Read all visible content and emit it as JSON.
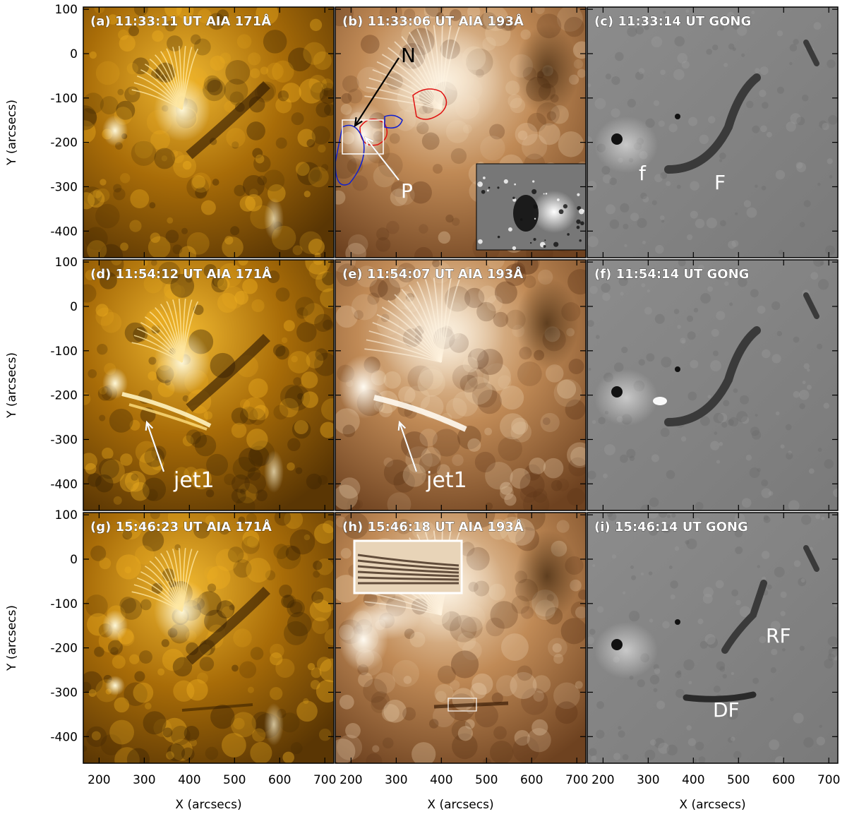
{
  "figure": {
    "x_axis_label": "X (arcsecs)",
    "y_axis_label": "Y (arcsecs)",
    "x_ticks": [
      "200",
      "300",
      "400",
      "500",
      "600",
      "700"
    ],
    "y_ticks": [
      "100",
      "0",
      "-100",
      "-200",
      "-300",
      "-400"
    ],
    "x_range": [
      165,
      720
    ],
    "y_range": [
      -460,
      105
    ]
  },
  "panels": [
    {
      "id": "a",
      "label": "(a) 11:33:11 UT AIA 171Å",
      "instrument": "AIA 171",
      "color": "#e0a21c"
    },
    {
      "id": "b",
      "label": "(b) 11:33:06 UT AIA 193Å",
      "instrument": "AIA 193",
      "color": "#b87a3c"
    },
    {
      "id": "c",
      "label": "(c) 11:33:14 UT GONG",
      "instrument": "GONG H-alpha",
      "color": "#8a8a8a"
    },
    {
      "id": "d",
      "label": "(d) 11:54:12 UT AIA 171Å",
      "instrument": "AIA 171",
      "color": "#e0a21c"
    },
    {
      "id": "e",
      "label": "(e) 11:54:07 UT AIA 193Å",
      "instrument": "AIA 193",
      "color": "#b87a3c"
    },
    {
      "id": "f",
      "label": "(f) 11:54:14 UT GONG",
      "instrument": "GONG H-alpha",
      "color": "#8a8a8a"
    },
    {
      "id": "g",
      "label": "(g) 15:46:23 UT AIA 171Å",
      "instrument": "AIA 171",
      "color": "#e0a21c"
    },
    {
      "id": "h",
      "label": "(h) 15:46:18 UT AIA 193Å",
      "instrument": "AIA 193",
      "color": "#b87a3c"
    },
    {
      "id": "i",
      "label": "(i) 15:46:14 UT GONG",
      "instrument": "GONG H-alpha",
      "color": "#8a8a8a"
    }
  ],
  "annotations": {
    "N": "N",
    "P": "P",
    "f": "f",
    "F": "F",
    "jet1_d": "jet1",
    "jet1_e": "jet1",
    "RF": "RF",
    "DF": "DF"
  },
  "contour_colors": {
    "positive": "#e01010",
    "negative": "#1020d0"
  }
}
